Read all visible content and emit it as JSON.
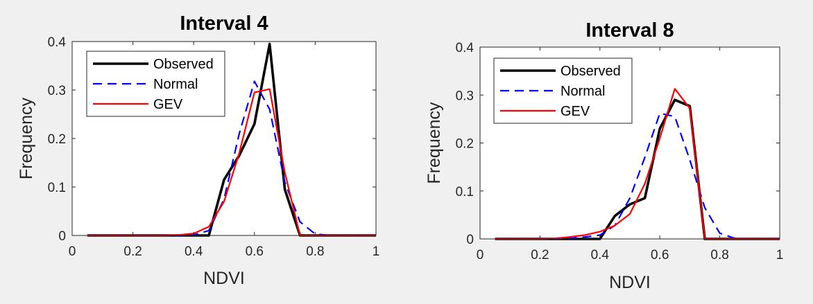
{
  "chart_data": [
    {
      "type": "line",
      "title": "Interval 4",
      "xlabel": "NDVI",
      "ylabel": "Frequency",
      "xlim": [
        0,
        1
      ],
      "ylim": [
        0,
        0.4
      ],
      "xticks": [
        "0",
        "0.2",
        "0.4",
        "0.6",
        "0.8",
        "1"
      ],
      "yticks": [
        "0",
        "0.1",
        "0.2",
        "0.3",
        "0.4"
      ],
      "legend_position": "top-left",
      "series": [
        {
          "name": "Observed",
          "color": "#000000",
          "style": "solid",
          "x": [
            0.05,
            0.1,
            0.15,
            0.2,
            0.25,
            0.3,
            0.35,
            0.4,
            0.45,
            0.5,
            0.55,
            0.6,
            0.65,
            0.7,
            0.75,
            0.8,
            0.85,
            0.9,
            0.95,
            1.0
          ],
          "y": [
            0,
            0,
            0,
            0,
            0,
            0,
            0,
            0,
            0,
            0.115,
            0.165,
            0.23,
            0.395,
            0.095,
            0,
            0,
            0,
            0,
            0,
            0
          ]
        },
        {
          "name": "Normal",
          "color": "#0000ff",
          "style": "dashed",
          "x": [
            0.05,
            0.1,
            0.15,
            0.2,
            0.25,
            0.3,
            0.35,
            0.4,
            0.45,
            0.5,
            0.55,
            0.6,
            0.65,
            0.7,
            0.75,
            0.8,
            0.85,
            0.9,
            0.95,
            1.0
          ],
          "y": [
            0,
            0,
            0,
            0,
            0,
            0,
            0,
            0.001,
            0.01,
            0.075,
            0.21,
            0.318,
            0.26,
            0.11,
            0.028,
            0.003,
            0,
            0,
            0,
            0
          ]
        },
        {
          "name": "GEV",
          "color": "#ff0000",
          "style": "solid",
          "x": [
            0.05,
            0.1,
            0.15,
            0.2,
            0.25,
            0.3,
            0.35,
            0.4,
            0.45,
            0.5,
            0.55,
            0.6,
            0.65,
            0.7,
            0.75,
            0.8,
            0.85,
            0.9,
            0.95,
            1.0
          ],
          "y": [
            0,
            0,
            0,
            0,
            0,
            0,
            0.001,
            0.004,
            0.018,
            0.07,
            0.17,
            0.295,
            0.302,
            0.13,
            0,
            0,
            0,
            0,
            0,
            0
          ]
        }
      ]
    },
    {
      "type": "line",
      "title": "Interval 8",
      "xlabel": "NDVI",
      "ylabel": "Frequency",
      "xlim": [
        0,
        1
      ],
      "ylim": [
        0,
        0.4
      ],
      "xticks": [
        "0",
        "0.2",
        "0.4",
        "0.6",
        "0.8",
        "1"
      ],
      "yticks": [
        "0",
        "0.1",
        "0.2",
        "0.3",
        "0.4"
      ],
      "legend_position": "top-left",
      "series": [
        {
          "name": "Observed",
          "color": "#000000",
          "style": "solid",
          "x": [
            0.05,
            0.1,
            0.15,
            0.2,
            0.25,
            0.3,
            0.35,
            0.4,
            0.45,
            0.5,
            0.55,
            0.6,
            0.65,
            0.7,
            0.75,
            0.8,
            0.85,
            0.9,
            0.95,
            1.0
          ],
          "y": [
            0,
            0,
            0,
            0,
            0,
            0,
            0,
            0,
            0.048,
            0.072,
            0.085,
            0.23,
            0.29,
            0.277,
            0,
            0,
            0,
            0,
            0,
            0
          ]
        },
        {
          "name": "Normal",
          "color": "#0000ff",
          "style": "dashed",
          "x": [
            0.05,
            0.1,
            0.15,
            0.2,
            0.25,
            0.3,
            0.35,
            0.4,
            0.45,
            0.5,
            0.55,
            0.6,
            0.65,
            0.7,
            0.75,
            0.8,
            0.85,
            0.9,
            0.95,
            1.0
          ],
          "y": [
            0,
            0,
            0,
            0,
            0,
            0.001,
            0.004,
            0.008,
            0.028,
            0.085,
            0.17,
            0.262,
            0.255,
            0.165,
            0.065,
            0.012,
            0.001,
            0,
            0,
            0
          ]
        },
        {
          "name": "GEV",
          "color": "#ff0000",
          "style": "solid",
          "x": [
            0.05,
            0.1,
            0.15,
            0.2,
            0.25,
            0.3,
            0.35,
            0.4,
            0.45,
            0.5,
            0.55,
            0.6,
            0.65,
            0.7,
            0.75,
            0.8,
            0.85,
            0.9,
            0.95,
            1.0
          ],
          "y": [
            0,
            0,
            0,
            0,
            0.001,
            0.004,
            0.008,
            0.015,
            0.028,
            0.052,
            0.115,
            0.21,
            0.313,
            0.272,
            0,
            0,
            0,
            0,
            0,
            0
          ]
        }
      ]
    }
  ]
}
